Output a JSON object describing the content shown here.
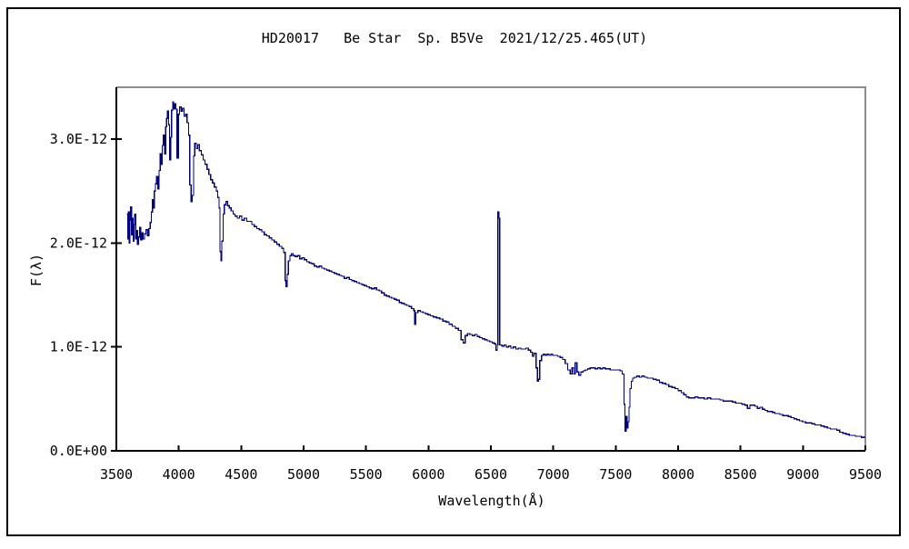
{
  "chart_data": {
    "type": "line",
    "title": "HD20017   Be Star  Sp. B5Ve  2021/12/25.465(UT)",
    "xlabel": "Wavelength(Å)",
    "ylabel": "F(λ)",
    "xlim": [
      3500,
      9500
    ],
    "ylim": [
      0,
      3.5
    ],
    "y_value_scale": "1E-12",
    "grid": false,
    "legend": "none",
    "line_color": "#000080",
    "axis_color": "#000000",
    "frame_color": "#8c8c8c",
    "border_color": "#000000",
    "x_ticks": [
      3500,
      4000,
      4500,
      5000,
      5500,
      6000,
      6500,
      7000,
      7500,
      8000,
      8500,
      9000,
      9500
    ],
    "y_ticks": [
      {
        "value": 0.0,
        "label": "0.0E+00"
      },
      {
        "value": 1.0,
        "label": "1.0E-12"
      },
      {
        "value": 2.0,
        "label": "2.0E-12"
      },
      {
        "value": 3.0,
        "label": "3.0E-12"
      }
    ],
    "series_name": "HD20017 spectrum",
    "points_wavelength_flux": [
      [
        3585,
        2.28
      ],
      [
        3591,
        2.04
      ],
      [
        3597,
        2.3
      ],
      [
        3603,
        2.0
      ],
      [
        3609,
        2.22
      ],
      [
        3615,
        2.35
      ],
      [
        3621,
        2.08
      ],
      [
        3628,
        2.24
      ],
      [
        3634,
        2.02
      ],
      [
        3641,
        2.18
      ],
      [
        3648,
        2.28
      ],
      [
        3655,
        2.04
      ],
      [
        3663,
        2.12
      ],
      [
        3670,
        1.99
      ],
      [
        3678,
        2.06
      ],
      [
        3686,
        2.15
      ],
      [
        3695,
        2.03
      ],
      [
        3705,
        2.1
      ],
      [
        3715,
        2.04
      ],
      [
        3726,
        2.09
      ],
      [
        3737,
        2.13
      ],
      [
        3748,
        2.07
      ],
      [
        3760,
        2.14
      ],
      [
        3770,
        2.2
      ],
      [
        3780,
        2.3
      ],
      [
        3790,
        2.42
      ],
      [
        3797,
        2.34
      ],
      [
        3804,
        2.5
      ],
      [
        3813,
        2.57
      ],
      [
        3822,
        2.64
      ],
      [
        3832,
        2.52
      ],
      [
        3842,
        2.7
      ],
      [
        3852,
        2.86
      ],
      [
        3860,
        2.76
      ],
      [
        3868,
        2.94
      ],
      [
        3877,
        3.04
      ],
      [
        3886,
        2.86
      ],
      [
        3894,
        3.12
      ],
      [
        3902,
        3.2
      ],
      [
        3910,
        3.27
      ],
      [
        3918,
        3.14
      ],
      [
        3926,
        2.8
      ],
      [
        3935,
        3.02
      ],
      [
        3943,
        3.28
      ],
      [
        3951,
        3.36
      ],
      [
        3959,
        3.29
      ],
      [
        3967,
        3.34
      ],
      [
        3976,
        3.29
      ],
      [
        3986,
        2.82
      ],
      [
        3996,
        3.24
      ],
      [
        4006,
        3.31
      ],
      [
        4018,
        3.27
      ],
      [
        4030,
        3.3
      ],
      [
        4042,
        3.22
      ],
      [
        4054,
        3.24
      ],
      [
        4066,
        3.16
      ],
      [
        4078,
        3.04
      ],
      [
        4088,
        2.56
      ],
      [
        4098,
        2.4
      ],
      [
        4108,
        2.46
      ],
      [
        4118,
        2.84
      ],
      [
        4128,
        2.96
      ],
      [
        4140,
        2.91
      ],
      [
        4152,
        2.95
      ],
      [
        4165,
        2.89
      ],
      [
        4180,
        2.85
      ],
      [
        4195,
        2.8
      ],
      [
        4210,
        2.76
      ],
      [
        4225,
        2.71
      ],
      [
        4240,
        2.66
      ],
      [
        4255,
        2.61
      ],
      [
        4270,
        2.58
      ],
      [
        4285,
        2.54
      ],
      [
        4300,
        2.5
      ],
      [
        4312,
        2.44
      ],
      [
        4322,
        2.34
      ],
      [
        4330,
        1.92
      ],
      [
        4337,
        1.83
      ],
      [
        4345,
        2.02
      ],
      [
        4355,
        2.28
      ],
      [
        4365,
        2.37
      ],
      [
        4377,
        2.4
      ],
      [
        4390,
        2.36
      ],
      [
        4405,
        2.34
      ],
      [
        4420,
        2.31
      ],
      [
        4435,
        2.28
      ],
      [
        4450,
        2.26
      ],
      [
        4468,
        2.24
      ],
      [
        4486,
        2.26
      ],
      [
        4505,
        2.22
      ],
      [
        4525,
        2.24
      ],
      [
        4545,
        2.21
      ],
      [
        4565,
        2.21
      ],
      [
        4585,
        2.18
      ],
      [
        4605,
        2.16
      ],
      [
        4625,
        2.14
      ],
      [
        4645,
        2.13
      ],
      [
        4665,
        2.11
      ],
      [
        4685,
        2.08
      ],
      [
        4705,
        2.07
      ],
      [
        4725,
        2.05
      ],
      [
        4745,
        2.03
      ],
      [
        4765,
        2.01
      ],
      [
        4785,
        1.99
      ],
      [
        4805,
        1.97
      ],
      [
        4825,
        1.95
      ],
      [
        4840,
        1.91
      ],
      [
        4852,
        1.64
      ],
      [
        4860,
        1.58
      ],
      [
        4868,
        1.7
      ],
      [
        4878,
        1.83
      ],
      [
        4890,
        1.88
      ],
      [
        4902,
        1.9
      ],
      [
        4915,
        1.88
      ],
      [
        4932,
        1.87
      ],
      [
        4950,
        1.88
      ],
      [
        4968,
        1.85
      ],
      [
        4986,
        1.86
      ],
      [
        5005,
        1.84
      ],
      [
        5025,
        1.82
      ],
      [
        5045,
        1.81
      ],
      [
        5065,
        1.8
      ],
      [
        5085,
        1.78
      ],
      [
        5105,
        1.77
      ],
      [
        5125,
        1.78
      ],
      [
        5145,
        1.76
      ],
      [
        5165,
        1.75
      ],
      [
        5185,
        1.74
      ],
      [
        5205,
        1.73
      ],
      [
        5225,
        1.72
      ],
      [
        5245,
        1.71
      ],
      [
        5265,
        1.7
      ],
      [
        5285,
        1.69
      ],
      [
        5305,
        1.68
      ],
      [
        5325,
        1.66
      ],
      [
        5345,
        1.67
      ],
      [
        5365,
        1.65
      ],
      [
        5385,
        1.64
      ],
      [
        5405,
        1.63
      ],
      [
        5425,
        1.62
      ],
      [
        5445,
        1.61
      ],
      [
        5465,
        1.6
      ],
      [
        5485,
        1.59
      ],
      [
        5505,
        1.58
      ],
      [
        5525,
        1.57
      ],
      [
        5545,
        1.56
      ],
      [
        5565,
        1.57
      ],
      [
        5585,
        1.55
      ],
      [
        5605,
        1.54
      ],
      [
        5625,
        1.52
      ],
      [
        5645,
        1.5
      ],
      [
        5665,
        1.49
      ],
      [
        5685,
        1.48
      ],
      [
        5705,
        1.47
      ],
      [
        5725,
        1.46
      ],
      [
        5745,
        1.45
      ],
      [
        5765,
        1.43
      ],
      [
        5785,
        1.42
      ],
      [
        5805,
        1.41
      ],
      [
        5825,
        1.4
      ],
      [
        5845,
        1.39
      ],
      [
        5865,
        1.37
      ],
      [
        5882,
        1.35
      ],
      [
        5890,
        1.22
      ],
      [
        5898,
        1.33
      ],
      [
        5915,
        1.35
      ],
      [
        5935,
        1.34
      ],
      [
        5955,
        1.33
      ],
      [
        5975,
        1.32
      ],
      [
        5995,
        1.31
      ],
      [
        6015,
        1.3
      ],
      [
        6040,
        1.29
      ],
      [
        6065,
        1.28
      ],
      [
        6090,
        1.27
      ],
      [
        6115,
        1.25
      ],
      [
        6140,
        1.24
      ],
      [
        6165,
        1.22
      ],
      [
        6190,
        1.2
      ],
      [
        6215,
        1.18
      ],
      [
        6240,
        1.16
      ],
      [
        6262,
        1.07
      ],
      [
        6278,
        1.04
      ],
      [
        6294,
        1.11
      ],
      [
        6312,
        1.13
      ],
      [
        6330,
        1.12
      ],
      [
        6350,
        1.11
      ],
      [
        6370,
        1.12
      ],
      [
        6390,
        1.1
      ],
      [
        6410,
        1.09
      ],
      [
        6430,
        1.08
      ],
      [
        6450,
        1.07
      ],
      [
        6470,
        1.06
      ],
      [
        6490,
        1.05
      ],
      [
        6510,
        1.04
      ],
      [
        6528,
        1.03
      ],
      [
        6540,
        0.97
      ],
      [
        6550,
        1.02
      ],
      [
        6557,
        2.3
      ],
      [
        6565,
        2.24
      ],
      [
        6571,
        1.02
      ],
      [
        6588,
        1.01
      ],
      [
        6606,
        1.02
      ],
      [
        6624,
        1.0
      ],
      [
        6642,
        1.01
      ],
      [
        6660,
        0.99
      ],
      [
        6680,
        1.0
      ],
      [
        6700,
        0.98
      ],
      [
        6720,
        0.99
      ],
      [
        6740,
        0.98
      ],
      [
        6760,
        0.98
      ],
      [
        6780,
        0.99
      ],
      [
        6800,
        0.97
      ],
      [
        6818,
        0.95
      ],
      [
        6832,
        0.91
      ],
      [
        6846,
        0.94
      ],
      [
        6862,
        0.8
      ],
      [
        6872,
        0.67
      ],
      [
        6882,
        0.69
      ],
      [
        6892,
        0.87
      ],
      [
        6905,
        0.92
      ],
      [
        6920,
        0.93
      ],
      [
        6935,
        0.92
      ],
      [
        6950,
        0.93
      ],
      [
        6965,
        0.92
      ],
      [
        6980,
        0.93
      ],
      [
        6995,
        0.92
      ],
      [
        7015,
        0.92
      ],
      [
        7035,
        0.91
      ],
      [
        7055,
        0.9
      ],
      [
        7075,
        0.88
      ],
      [
        7095,
        0.84
      ],
      [
        7115,
        0.78
      ],
      [
        7135,
        0.74
      ],
      [
        7150,
        0.8
      ],
      [
        7162,
        0.74
      ],
      [
        7175,
        0.85
      ],
      [
        7190,
        0.76
      ],
      [
        7205,
        0.73
      ],
      [
        7220,
        0.76
      ],
      [
        7238,
        0.77
      ],
      [
        7256,
        0.78
      ],
      [
        7275,
        0.79
      ],
      [
        7295,
        0.8
      ],
      [
        7315,
        0.8
      ],
      [
        7335,
        0.79
      ],
      [
        7355,
        0.8
      ],
      [
        7375,
        0.79
      ],
      [
        7395,
        0.8
      ],
      [
        7415,
        0.79
      ],
      [
        7435,
        0.79
      ],
      [
        7455,
        0.78
      ],
      [
        7475,
        0.78
      ],
      [
        7495,
        0.78
      ],
      [
        7515,
        0.78
      ],
      [
        7535,
        0.77
      ],
      [
        7552,
        0.74
      ],
      [
        7566,
        0.45
      ],
      [
        7574,
        0.19
      ],
      [
        7582,
        0.33
      ],
      [
        7590,
        0.22
      ],
      [
        7598,
        0.28
      ],
      [
        7606,
        0.42
      ],
      [
        7614,
        0.6
      ],
      [
        7624,
        0.67
      ],
      [
        7636,
        0.7
      ],
      [
        7650,
        0.71
      ],
      [
        7668,
        0.72
      ],
      [
        7688,
        0.71
      ],
      [
        7708,
        0.72
      ],
      [
        7730,
        0.71
      ],
      [
        7752,
        0.7
      ],
      [
        7775,
        0.7
      ],
      [
        7800,
        0.69
      ],
      [
        7825,
        0.68
      ],
      [
        7850,
        0.66
      ],
      [
        7875,
        0.65
      ],
      [
        7900,
        0.64
      ],
      [
        7925,
        0.62
      ],
      [
        7950,
        0.61
      ],
      [
        7975,
        0.6
      ],
      [
        8000,
        0.58
      ],
      [
        8025,
        0.56
      ],
      [
        8045,
        0.54
      ],
      [
        8065,
        0.52
      ],
      [
        8085,
        0.51
      ],
      [
        8110,
        0.51
      ],
      [
        8135,
        0.52
      ],
      [
        8160,
        0.51
      ],
      [
        8185,
        0.51
      ],
      [
        8210,
        0.5
      ],
      [
        8235,
        0.51
      ],
      [
        8260,
        0.5
      ],
      [
        8285,
        0.5
      ],
      [
        8310,
        0.5
      ],
      [
        8335,
        0.49
      ],
      [
        8360,
        0.48
      ],
      [
        8385,
        0.48
      ],
      [
        8410,
        0.48
      ],
      [
        8435,
        0.47
      ],
      [
        8460,
        0.46
      ],
      [
        8485,
        0.46
      ],
      [
        8510,
        0.45
      ],
      [
        8535,
        0.44
      ],
      [
        8555,
        0.41
      ],
      [
        8575,
        0.44
      ],
      [
        8595,
        0.44
      ],
      [
        8615,
        0.43
      ],
      [
        8635,
        0.41
      ],
      [
        8655,
        0.42
      ],
      [
        8675,
        0.4
      ],
      [
        8695,
        0.39
      ],
      [
        8715,
        0.38
      ],
      [
        8735,
        0.38
      ],
      [
        8755,
        0.37
      ],
      [
        8775,
        0.36
      ],
      [
        8795,
        0.36
      ],
      [
        8815,
        0.35
      ],
      [
        8838,
        0.34
      ],
      [
        8860,
        0.34
      ],
      [
        8882,
        0.33
      ],
      [
        8905,
        0.32
      ],
      [
        8928,
        0.31
      ],
      [
        8950,
        0.3
      ],
      [
        8972,
        0.29
      ],
      [
        8995,
        0.28
      ],
      [
        9020,
        0.27
      ],
      [
        9045,
        0.27
      ],
      [
        9070,
        0.26
      ],
      [
        9095,
        0.25
      ],
      [
        9120,
        0.25
      ],
      [
        9145,
        0.24
      ],
      [
        9170,
        0.23
      ],
      [
        9195,
        0.22
      ],
      [
        9220,
        0.21
      ],
      [
        9245,
        0.21
      ],
      [
        9270,
        0.2
      ],
      [
        9295,
        0.18
      ],
      [
        9320,
        0.17
      ],
      [
        9345,
        0.16
      ],
      [
        9370,
        0.15
      ],
      [
        9395,
        0.15
      ],
      [
        9420,
        0.14
      ],
      [
        9445,
        0.14
      ],
      [
        9468,
        0.13
      ],
      [
        9490,
        0.14
      ]
    ]
  }
}
